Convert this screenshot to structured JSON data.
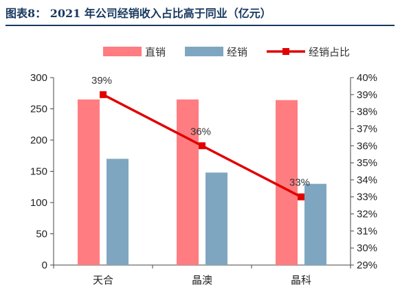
{
  "title": "图表8：  2021 年公司经销收入占比高于同业（亿元）",
  "chart_data": {
    "type": "bar",
    "categories": [
      "天合",
      "晶澳",
      "晶科"
    ],
    "series": [
      {
        "name": "直销",
        "values": [
          265,
          265,
          264
        ],
        "color": "#ff7c80",
        "axis": "left",
        "type": "bar"
      },
      {
        "name": "经销",
        "values": [
          170,
          148,
          130
        ],
        "color": "#7fa6c0",
        "axis": "left",
        "type": "bar"
      },
      {
        "name": "经销占比",
        "values": [
          39,
          36,
          33
        ],
        "color": "#e00000",
        "axis": "right",
        "type": "line",
        "labels": [
          "39%",
          "36%",
          "33%"
        ]
      }
    ],
    "y_left": {
      "min": 0,
      "max": 300,
      "ticks": [
        "0",
        "50",
        "100",
        "150",
        "200",
        "250",
        "300"
      ]
    },
    "y_right": {
      "min": 29,
      "max": 40,
      "ticks": [
        "29%",
        "30%",
        "31%",
        "32%",
        "33%",
        "34%",
        "35%",
        "36%",
        "37%",
        "38%",
        "39%",
        "40%"
      ]
    },
    "legend_position": "top",
    "grid": false
  }
}
